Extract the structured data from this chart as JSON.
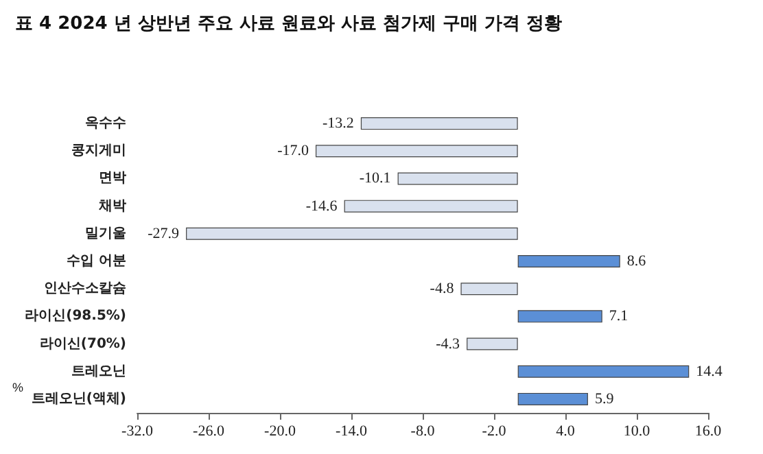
{
  "chart_data": {
    "type": "bar",
    "orientation": "horizontal",
    "title": "표 4 2024 년 상반년 주요 사료 원료와 사료 첨가제 구매 가격 정황",
    "xlabel": "%",
    "categories": [
      "옥수수",
      "콩지게미",
      "면박",
      "채박",
      "밀기울",
      "수입 어분",
      "인산수소칼슘",
      "라이신(98.5%)",
      "라이신(70%)",
      "트레오닌",
      "트레오닌(액체)"
    ],
    "values": [
      -13.2,
      -17.0,
      -10.1,
      -14.6,
      -27.9,
      8.6,
      -4.8,
      7.1,
      -4.3,
      14.4,
      5.9
    ],
    "value_labels": [
      "-13.2",
      "-17.0",
      "-10.1",
      "-14.6",
      "-27.9",
      "8.6",
      "-4.8",
      "7.1",
      "-4.3",
      "14.4",
      "5.9"
    ],
    "colors": [
      "#d9e1ee",
      "#d9e1ee",
      "#d9e1ee",
      "#d9e1ee",
      "#d9e1ee",
      "#5b8fd6",
      "#d9e1ee",
      "#5b8fd6",
      "#d9e1ee",
      "#5b8fd6",
      "#5b8fd6"
    ],
    "xlim": [
      -32,
      16
    ],
    "xticks": [
      {
        "value": -32,
        "label": "-32.0"
      },
      {
        "value": -26,
        "label": "-26.0"
      },
      {
        "value": -20,
        "label": "-20.0"
      },
      {
        "value": -14,
        "label": "-14.0"
      },
      {
        "value": -8,
        "label": "-8.0"
      },
      {
        "value": -2,
        "label": "-2.0"
      },
      {
        "value": 4,
        "label": "4.0"
      },
      {
        "value": 10,
        "label": "10.0"
      },
      {
        "value": 16,
        "label": "16.0"
      }
    ]
  }
}
